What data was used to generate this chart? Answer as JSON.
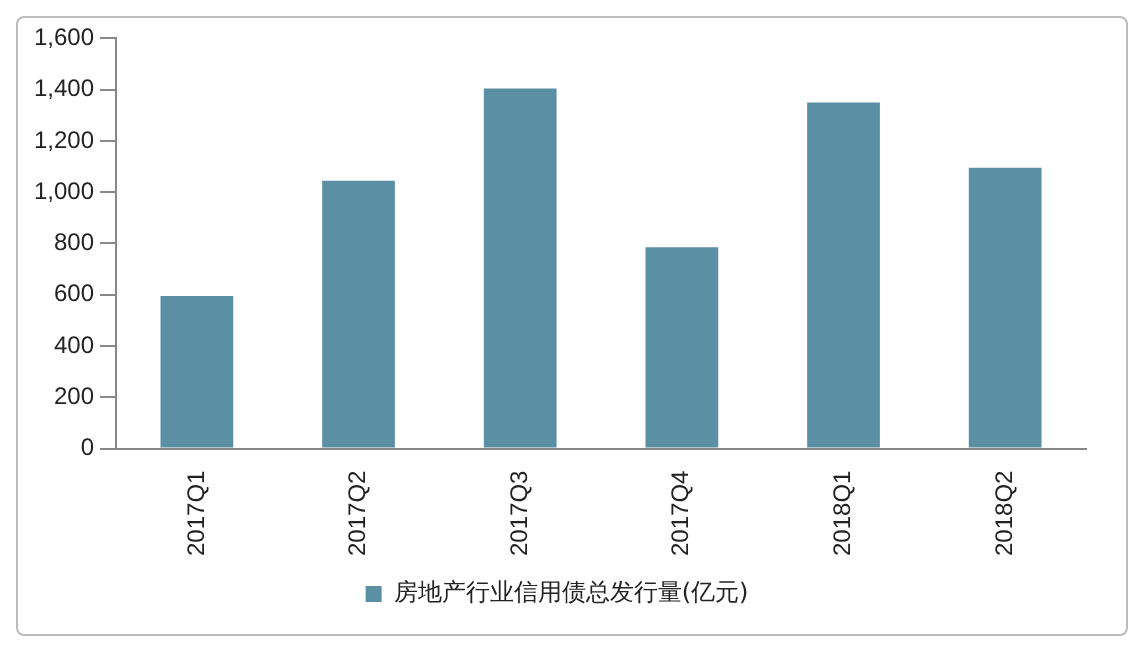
{
  "chart_data": {
    "type": "bar",
    "categories": [
      "2017Q1",
      "2017Q2",
      "2017Q3",
      "2017Q4",
      "2018Q1",
      "2018Q2"
    ],
    "series": [
      {
        "name": "房地产行业信用债总发行量(亿元)",
        "color": "#5b8fa3",
        "values": [
          595,
          1045,
          1405,
          785,
          1350,
          1095
        ]
      }
    ],
    "ylim": [
      0,
      1600
    ],
    "yticks": [
      {
        "value": 0,
        "label": "0"
      },
      {
        "value": 200,
        "label": "200"
      },
      {
        "value": 400,
        "label": "400"
      },
      {
        "value": 600,
        "label": "600"
      },
      {
        "value": 800,
        "label": "800"
      },
      {
        "value": 1000,
        "label": "1,000"
      },
      {
        "value": 1200,
        "label": "1,200"
      },
      {
        "value": 1400,
        "label": "1,400"
      },
      {
        "value": 1600,
        "label": "1,600"
      }
    ],
    "grid": false,
    "legend": "bottom"
  }
}
